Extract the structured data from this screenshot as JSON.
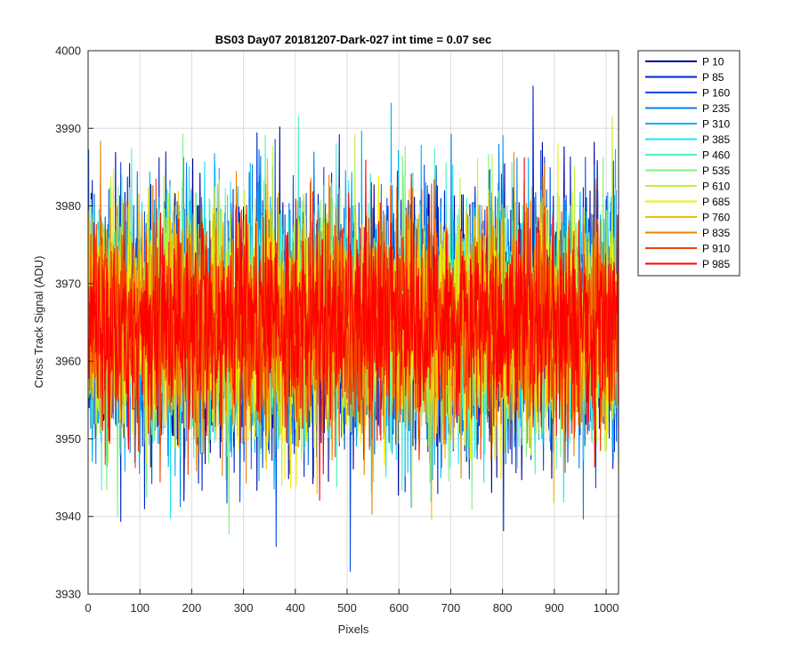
{
  "chart_data": {
    "type": "line",
    "title": "BS03 Day07 20181207-Dark-027 int time = 0.07 sec",
    "xlabel": "Pixels",
    "ylabel": "Cross Track Signal (ADU)",
    "xlim": [
      0,
      1024
    ],
    "ylim": [
      3930,
      4000
    ],
    "xticks": [
      0,
      100,
      200,
      300,
      400,
      500,
      600,
      700,
      800,
      900,
      1000
    ],
    "yticks": [
      3930,
      3940,
      3950,
      3960,
      3970,
      3980,
      3990,
      4000
    ],
    "grid": true,
    "legend_position": "outside-right",
    "series": [
      {
        "name": "P 10",
        "color": "#0000a0",
        "mean": 3965,
        "sd": 8.0
      },
      {
        "name": "P 85",
        "color": "#0022cc",
        "mean": 3965,
        "sd": 8.0
      },
      {
        "name": "P 160",
        "color": "#0050e0",
        "mean": 3965,
        "sd": 8.0
      },
      {
        "name": "P 235",
        "color": "#0080f0",
        "mean": 3965,
        "sd": 7.8
      },
      {
        "name": "P 310",
        "color": "#00b0f8",
        "mean": 3965,
        "sd": 7.8
      },
      {
        "name": "P 385",
        "color": "#20e0f0",
        "mean": 3965,
        "sd": 7.5
      },
      {
        "name": "P 460",
        "color": "#50f0c8",
        "mean": 3965,
        "sd": 7.5
      },
      {
        "name": "P 535",
        "color": "#80f080",
        "mean": 3965,
        "sd": 7.5
      },
      {
        "name": "P 610",
        "color": "#c0f040",
        "mean": 3965,
        "sd": 7.2
      },
      {
        "name": "P 685",
        "color": "#f0f000",
        "mean": 3965,
        "sd": 7.2
      },
      {
        "name": "P 760",
        "color": "#f0c000",
        "mean": 3965,
        "sd": 7.0
      },
      {
        "name": "P 835",
        "color": "#f08000",
        "mean": 3965,
        "sd": 7.0
      },
      {
        "name": "P 910",
        "color": "#f04000",
        "mean": 3965,
        "sd": 6.8
      },
      {
        "name": "P 985",
        "color": "#ff0000",
        "mean": 3965,
        "sd": 6.5
      }
    ]
  }
}
